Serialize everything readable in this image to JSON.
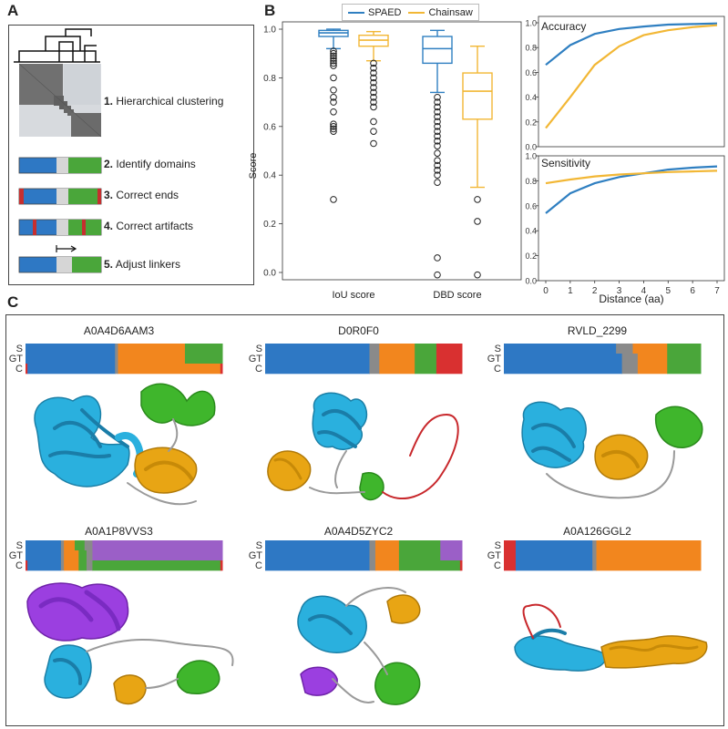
{
  "panels": {
    "a": "A",
    "b": "B",
    "c": "C"
  },
  "colors": {
    "spaed": "#2f7fc1",
    "chainsaw": "#f2b735",
    "domain_blue": "#2e78c4",
    "domain_green": "#4aa63a",
    "domain_orange": "#f2861e",
    "domain_red": "#d93030",
    "domain_purple": "#9b5fc7",
    "linker_gray": "#8a8a8a",
    "protein_cyan": "#2ab0de",
    "protein_gold": "#e8a514",
    "protein_green": "#3fb62c",
    "protein_purple": "#9b3fe0",
    "protein_red": "#c8282c"
  },
  "panel_a": {
    "steps": [
      {
        "num": "1.",
        "text": "Hierarchical clustering"
      },
      {
        "num": "2.",
        "text": "Identify domains"
      },
      {
        "num": "3.",
        "text": "Correct ends"
      },
      {
        "num": "4.",
        "text": "Correct artifacts"
      },
      {
        "num": "5.",
        "text": "Adjust linkers"
      }
    ]
  },
  "legend": {
    "spaed": "SPAED",
    "chainsaw": "Chainsaw"
  },
  "chart_data": [
    {
      "type": "box",
      "ylabel": "Score",
      "categories": [
        "IoU score",
        "DBD score"
      ],
      "ylim": [
        -0.03,
        1.03
      ],
      "yticks": [
        "0.0",
        "0.2",
        "0.4",
        "0.6",
        "0.8",
        "1.0"
      ],
      "series": [
        {
          "name": "SPAED",
          "boxes": [
            {
              "whislo": 0.92,
              "q1": 0.97,
              "med": 0.985,
              "q3": 0.995,
              "whishi": 1.0,
              "fliers": [
                0.3,
                0.58,
                0.59,
                0.6,
                0.61,
                0.66,
                0.7,
                0.72,
                0.75,
                0.8,
                0.85,
                0.86,
                0.87,
                0.88,
                0.89,
                0.9,
                0.91
              ]
            },
            {
              "whislo": 0.74,
              "q1": 0.86,
              "med": 0.92,
              "q3": 0.97,
              "whishi": 0.995,
              "fliers": [
                -0.01,
                0.06,
                0.37,
                0.4,
                0.42,
                0.44,
                0.46,
                0.49,
                0.52,
                0.54,
                0.56,
                0.58,
                0.6,
                0.62,
                0.64,
                0.66,
                0.68,
                0.7,
                0.72
              ]
            }
          ]
        },
        {
          "name": "Chainsaw",
          "boxes": [
            {
              "whislo": 0.87,
              "q1": 0.93,
              "med": 0.955,
              "q3": 0.975,
              "whishi": 0.99,
              "fliers": [
                0.53,
                0.58,
                0.62,
                0.68,
                0.7,
                0.72,
                0.74,
                0.76,
                0.78,
                0.8,
                0.82,
                0.84,
                0.86
              ]
            },
            {
              "whislo": 0.35,
              "q1": 0.63,
              "med": 0.745,
              "q3": 0.82,
              "whishi": 0.93,
              "fliers": [
                -0.01,
                0.21,
                0.3
              ]
            }
          ]
        }
      ]
    },
    {
      "type": "line",
      "title": "Accuracy",
      "x": [
        0,
        1,
        2,
        3,
        4,
        5,
        6,
        7
      ],
      "ylim": [
        0,
        1
      ],
      "yticks": [
        "0.0",
        "0.2",
        "0.4",
        "0.6",
        "0.8",
        "1.0"
      ],
      "series": [
        {
          "name": "SPAED",
          "values": [
            0.66,
            0.82,
            0.91,
            0.95,
            0.97,
            0.985,
            0.99,
            0.995
          ]
        },
        {
          "name": "Chainsaw",
          "values": [
            0.15,
            0.4,
            0.66,
            0.81,
            0.9,
            0.94,
            0.965,
            0.98
          ]
        }
      ]
    },
    {
      "type": "line",
      "title": "Sensitivity",
      "xlabel": "Distance (aa)",
      "x": [
        0,
        1,
        2,
        3,
        4,
        5,
        6,
        7
      ],
      "xticks": [
        "0",
        "1",
        "2",
        "3",
        "4",
        "5",
        "6",
        "7"
      ],
      "ylim": [
        0,
        1
      ],
      "yticks": [
        "0.0",
        "0.2",
        "0.4",
        "0.6",
        "0.8",
        "1.0"
      ],
      "series": [
        {
          "name": "SPAED",
          "values": [
            0.54,
            0.7,
            0.78,
            0.83,
            0.86,
            0.89,
            0.905,
            0.915
          ]
        },
        {
          "name": "Chainsaw",
          "values": [
            0.78,
            0.81,
            0.835,
            0.85,
            0.86,
            0.87,
            0.875,
            0.88
          ]
        }
      ]
    }
  ],
  "proteins": [
    {
      "name": "A0A4D6AAM3",
      "rows": [
        [
          [
            "domain_blue",
            0.0
          ],
          [
            "linker_gray",
            0.455
          ],
          [
            "domain_orange",
            0.47
          ],
          [
            "domain_green",
            0.81
          ]
        ],
        [
          [
            "domain_blue",
            0.0
          ],
          [
            "linker_gray",
            0.455
          ],
          [
            "domain_orange",
            0.47
          ],
          [
            "domain_green",
            0.81
          ]
        ],
        [
          [
            "domain_red",
            0.0
          ],
          [
            "domain_blue",
            0.01
          ],
          [
            "linker_gray",
            0.455
          ],
          [
            "domain_orange",
            0.47
          ],
          [
            "domain_red",
            0.99
          ]
        ]
      ]
    },
    {
      "name": "D0R0F0",
      "rows": [
        [
          [
            "domain_blue",
            0.0
          ],
          [
            "linker_gray",
            0.53
          ],
          [
            "domain_orange",
            0.58
          ],
          [
            "domain_green",
            0.76
          ],
          [
            "domain_red",
            0.87
          ]
        ],
        [
          [
            "domain_blue",
            0.0
          ],
          [
            "linker_gray",
            0.53
          ],
          [
            "domain_orange",
            0.58
          ],
          [
            "domain_green",
            0.76
          ],
          [
            "domain_red",
            0.87
          ]
        ],
        [
          [
            "domain_blue",
            0.0
          ],
          [
            "linker_gray",
            0.53
          ],
          [
            "domain_orange",
            0.58
          ],
          [
            "domain_green",
            0.76
          ],
          [
            "domain_red",
            0.87
          ]
        ]
      ]
    },
    {
      "name": "RVLD_2299",
      "rows": [
        [
          [
            "domain_blue",
            0.0
          ],
          [
            "linker_gray",
            0.57
          ],
          [
            "domain_orange",
            0.655
          ],
          [
            "domain_green",
            0.83
          ]
        ],
        [
          [
            "domain_blue",
            0.0
          ],
          [
            "linker_gray",
            0.6
          ],
          [
            "domain_orange",
            0.68
          ],
          [
            "domain_green",
            0.83
          ]
        ],
        [
          [
            "domain_blue",
            0.0
          ],
          [
            "linker_gray",
            0.6
          ],
          [
            "domain_orange",
            0.68
          ],
          [
            "domain_green",
            0.83
          ]
        ]
      ]
    },
    {
      "name": "A0A1P8VVS3",
      "rows": [
        [
          [
            "domain_blue",
            0.0
          ],
          [
            "linker_gray",
            0.18
          ],
          [
            "domain_orange",
            0.195
          ],
          [
            "domain_green",
            0.25
          ],
          [
            "linker_gray",
            0.3
          ],
          [
            "domain_purple",
            0.34
          ]
        ],
        [
          [
            "domain_blue",
            0.0
          ],
          [
            "linker_gray",
            0.18
          ],
          [
            "domain_orange",
            0.195
          ],
          [
            "domain_green",
            0.27
          ],
          [
            "linker_gray",
            0.31
          ],
          [
            "domain_purple",
            0.34
          ]
        ],
        [
          [
            "domain_red",
            0.0
          ],
          [
            "domain_blue",
            0.01
          ],
          [
            "linker_gray",
            0.18
          ],
          [
            "domain_orange",
            0.195
          ],
          [
            "domain_green",
            0.27
          ],
          [
            "linker_gray",
            0.31
          ],
          [
            "domain_green",
            0.34
          ],
          [
            "domain_red",
            0.99
          ]
        ]
      ]
    },
    {
      "name": "A0A4D5ZYC2",
      "rows": [
        [
          [
            "domain_blue",
            0.0
          ],
          [
            "linker_gray",
            0.53
          ],
          [
            "domain_orange",
            0.56
          ],
          [
            "domain_green",
            0.68
          ],
          [
            "domain_purple",
            0.89
          ]
        ],
        [
          [
            "domain_blue",
            0.0
          ],
          [
            "linker_gray",
            0.53
          ],
          [
            "domain_orange",
            0.56
          ],
          [
            "domain_green",
            0.68
          ],
          [
            "domain_purple",
            0.89
          ]
        ],
        [
          [
            "domain_blue",
            0.0
          ],
          [
            "linker_gray",
            0.53
          ],
          [
            "domain_orange",
            0.56
          ],
          [
            "domain_green",
            0.68
          ],
          [
            "domain_red",
            0.99
          ]
        ]
      ]
    },
    {
      "name": "A0A126GGL2",
      "rows": [
        [
          [
            "domain_red",
            0.0
          ],
          [
            "domain_blue",
            0.06
          ],
          [
            "linker_gray",
            0.45
          ],
          [
            "domain_orange",
            0.47
          ]
        ],
        [
          [
            "domain_red",
            0.0
          ],
          [
            "domain_blue",
            0.06
          ],
          [
            "linker_gray",
            0.45
          ],
          [
            "domain_orange",
            0.47
          ]
        ],
        [
          [
            "domain_red",
            0.0
          ],
          [
            "domain_blue",
            0.06
          ],
          [
            "linker_gray",
            0.45
          ],
          [
            "domain_orange",
            0.47
          ]
        ]
      ]
    }
  ],
  "row_labels": [
    "S",
    "GT",
    "C"
  ]
}
